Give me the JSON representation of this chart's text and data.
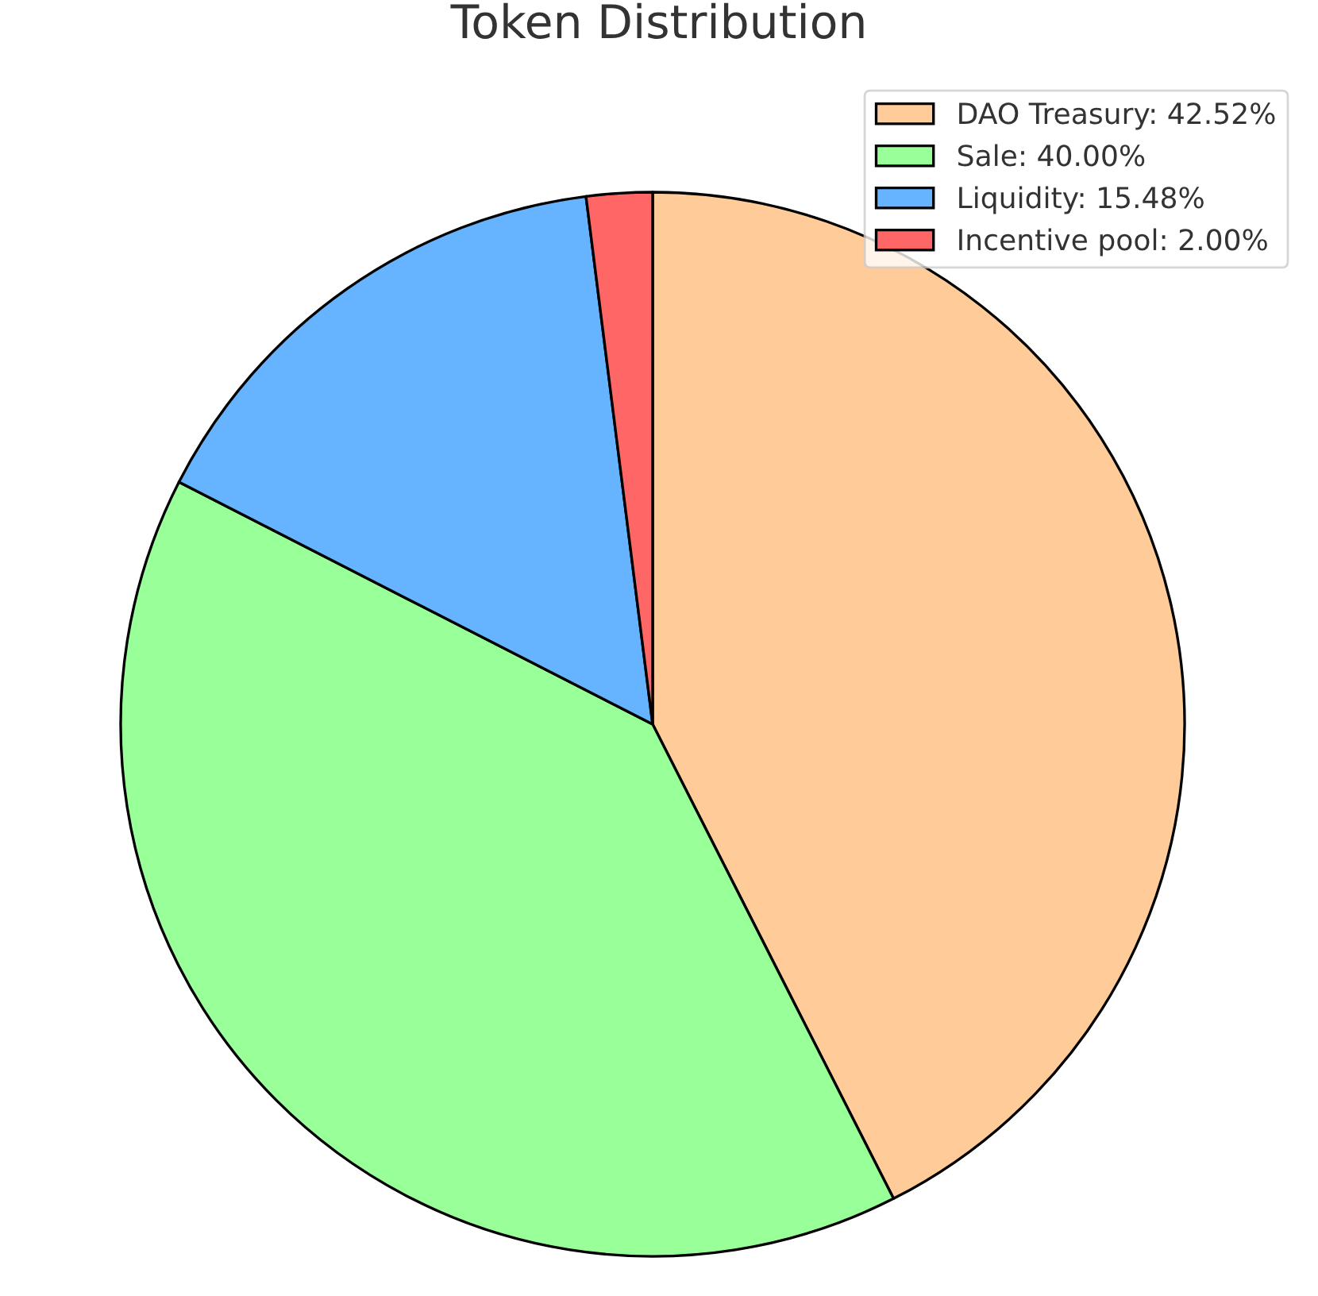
{
  "chart_data": {
    "type": "pie",
    "title": "Token Distribution",
    "categories": [
      "DAO Treasury: 42.52%",
      "Sale: 40.00%",
      "Liquidity: 15.48%",
      "Incentive pool: 2.00%"
    ],
    "values": [
      42.52,
      40.0,
      15.48,
      2.0
    ],
    "colors": [
      "#ffcc99",
      "#99ff99",
      "#66b3ff",
      "#ff6666"
    ],
    "legend": "top right"
  }
}
